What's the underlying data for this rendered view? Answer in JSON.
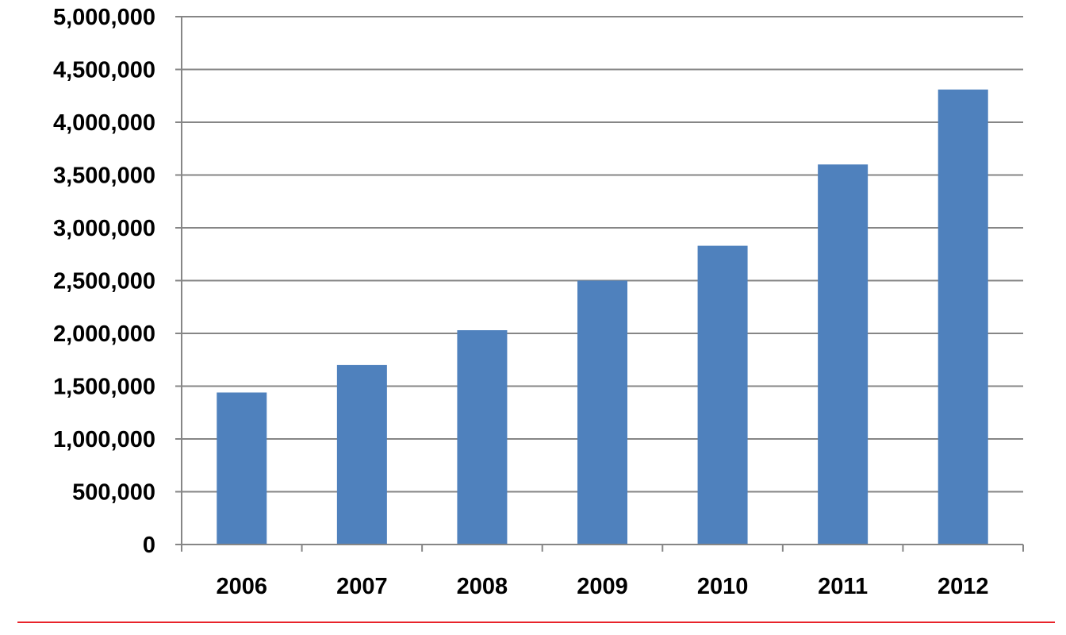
{
  "colors": {
    "bar": "#4f81bd",
    "gridline": "#868686",
    "axis": "#868686",
    "footer_line": "#e8232a",
    "text": "#000000"
  },
  "chart_data": {
    "type": "bar",
    "categories": [
      "2006",
      "2007",
      "2008",
      "2009",
      "2010",
      "2011",
      "2012"
    ],
    "values": [
      1440000,
      1700000,
      2030000,
      2500000,
      2830000,
      3600000,
      4310000
    ],
    "ylim": [
      0,
      5000000
    ],
    "yticks": [
      0,
      500000,
      1000000,
      1500000,
      2000000,
      2500000,
      3000000,
      3500000,
      4000000,
      4500000,
      5000000
    ],
    "ytick_labels": [
      "0",
      "500,000",
      "1,000,000",
      "1,500,000",
      "2,000,000",
      "2,500,000",
      "3,000,000",
      "3,500,000",
      "4,000,000",
      "4,500,000",
      "5,000,000"
    ],
    "grid": true,
    "legend": false
  }
}
